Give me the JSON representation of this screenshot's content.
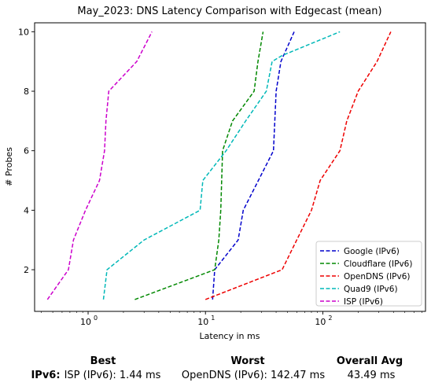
{
  "chart_data": {
    "type": "line",
    "title": "May_2023: DNS Latency Comparison with Edgecast (mean)",
    "xlabel": "Latency in ms",
    "ylabel": "# Probes",
    "xscale": "log",
    "xlim": [
      0.35,
      750
    ],
    "ylim": [
      0.6,
      10.3
    ],
    "xticks": [
      {
        "value": 1,
        "base": "10",
        "exp": "0"
      },
      {
        "value": 10,
        "base": "10",
        "exp": "1"
      },
      {
        "value": 100,
        "base": "10",
        "exp": "2"
      }
    ],
    "yticks": [
      2,
      4,
      6,
      8,
      10
    ],
    "grid": false,
    "legend_position": "lower-right",
    "series": [
      {
        "name": "Google (IPv6)",
        "color": "#0000cc",
        "x": [
          11.5,
          12,
          19,
          21,
          38,
          39,
          40,
          44,
          57
        ],
        "y": [
          1,
          2,
          3,
          4,
          6,
          7,
          8,
          9,
          10
        ]
      },
      {
        "name": "Cloudflare (IPv6)",
        "color": "#008800",
        "x": [
          2.5,
          12,
          13,
          13.5,
          14,
          17,
          26,
          28,
          31
        ],
        "y": [
          1,
          2,
          3,
          4,
          6,
          7,
          8,
          9,
          10
        ]
      },
      {
        "name": "OpenDNS (IPv6)",
        "color": "#ee0000",
        "x": [
          10,
          45,
          60,
          80,
          95,
          140,
          160,
          200,
          290,
          380
        ],
        "y": [
          1,
          2,
          3,
          4,
          5,
          6,
          7,
          8,
          9,
          10
        ]
      },
      {
        "name": "Quad9 (IPv6)",
        "color": "#00b8b8",
        "x": [
          1.35,
          1.45,
          3,
          9,
          9.5,
          15,
          22,
          33,
          37,
          45,
          140
        ],
        "y": [
          1,
          2,
          3,
          4,
          5,
          6,
          7,
          8,
          9,
          9.2,
          10
        ]
      },
      {
        "name": "ISP (IPv6)",
        "color": "#cc00cc",
        "x": [
          0.45,
          0.68,
          0.75,
          0.95,
          1.25,
          1.38,
          1.42,
          1.5,
          2.6,
          3.5
        ],
        "y": [
          1,
          2,
          3,
          4,
          5,
          6,
          7,
          8,
          9,
          10
        ]
      }
    ]
  },
  "summary": {
    "headers": {
      "best": "Best",
      "worst": "Worst",
      "avg": "Overall Avg"
    },
    "row_label": "IPv6:",
    "best": "ISP (IPv6): 1.44 ms",
    "worst": "OpenDNS (IPv6): 142.47 ms",
    "avg": "43.49 ms"
  }
}
